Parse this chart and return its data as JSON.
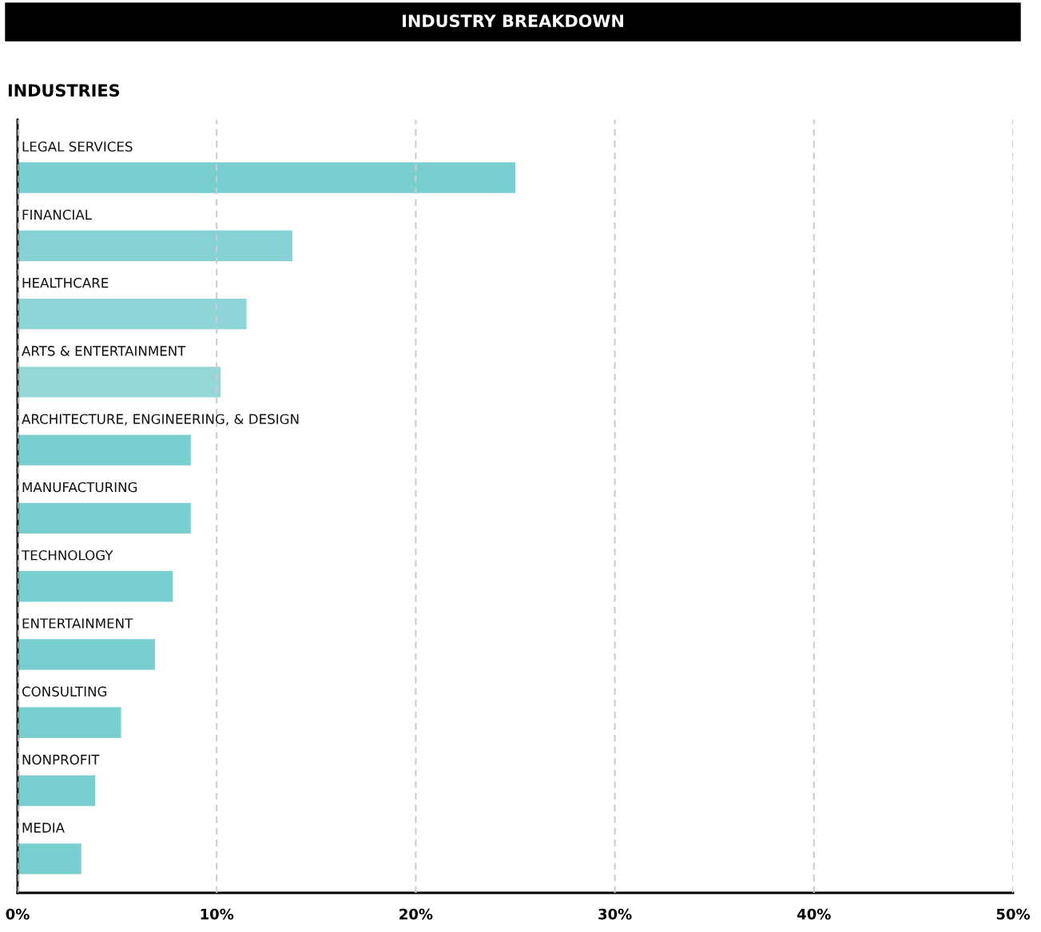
{
  "chart_data": {
    "type": "bar",
    "orientation": "horizontal",
    "title": "INDUSTRY BREAKDOWN",
    "subtitle": "INDUSTRIES",
    "categories": [
      "LEGAL SERVICES",
      "FINANCIAL",
      "HEALTHCARE",
      "ARTS & ENTERTAINMENT",
      "ARCHITECTURE, ENGINEERING, & DESIGN",
      "MANUFACTURING",
      "TECHNOLOGY",
      "ENTERTAINMENT",
      "CONSULTING",
      "NONPROFIT",
      "MEDIA"
    ],
    "values": [
      25,
      13.8,
      11.5,
      10.2,
      8.7,
      8.7,
      7.8,
      6.9,
      5.2,
      3.9,
      3.2
    ],
    "colors": [
      "#79cfd0",
      "#86d1d4",
      "#8fd5d8",
      "#96d7d7",
      "#79cfd0",
      "#79cfd0",
      "#79cfd0",
      "#79cfd0",
      "#79cfd0",
      "#79cfd0",
      "#79cfd0"
    ],
    "xlim": [
      0,
      50
    ],
    "xticks": [
      {
        "value": 0,
        "label": "0%"
      },
      {
        "value": 10,
        "label": "10%"
      },
      {
        "value": 20,
        "label": "20%"
      },
      {
        "value": 30,
        "label": "30%"
      },
      {
        "value": 40,
        "label": "40%"
      },
      {
        "value": 50,
        "label": "50%"
      }
    ],
    "grid": "x",
    "tick_labels": "x"
  }
}
